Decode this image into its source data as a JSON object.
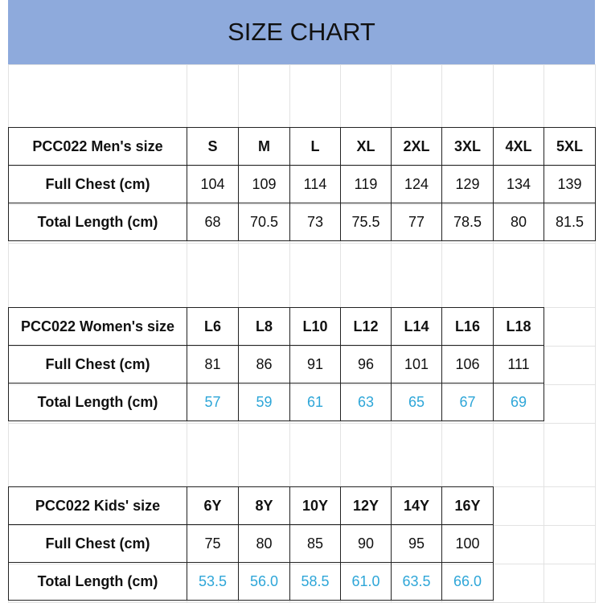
{
  "title": "SIZE CHART",
  "colors": {
    "header_band": "#8eaadc",
    "highlight_text": "#2ea6d8"
  },
  "tables": [
    {
      "header": "PCC022 Men's size",
      "sizes": [
        "S",
        "M",
        "L",
        "XL",
        "2XL",
        "3XL",
        "4XL",
        "5XL"
      ],
      "rows": [
        {
          "label": "Full Chest (cm)",
          "values": [
            "104",
            "109",
            "114",
            "119",
            "124",
            "129",
            "134",
            "139"
          ],
          "highlight": false
        },
        {
          "label": "Total Length (cm)",
          "values": [
            "68",
            "70.5",
            "73",
            "75.5",
            "77",
            "78.5",
            "80",
            "81.5"
          ],
          "highlight": false
        }
      ]
    },
    {
      "header": "PCC022 Women's size",
      "sizes": [
        "L6",
        "L8",
        "L10",
        "L12",
        "L14",
        "L16",
        "L18"
      ],
      "rows": [
        {
          "label": "Full Chest (cm)",
          "values": [
            "81",
            "86",
            "91",
            "96",
            "101",
            "106",
            "111"
          ],
          "highlight": false
        },
        {
          "label": "Total Length (cm)",
          "values": [
            "57",
            "59",
            "61",
            "63",
            "65",
            "67",
            "69"
          ],
          "highlight": true
        }
      ]
    },
    {
      "header": "PCC022 Kids' size",
      "sizes": [
        "6Y",
        "8Y",
        "10Y",
        "12Y",
        "14Y",
        "16Y"
      ],
      "rows": [
        {
          "label": "Full Chest (cm)",
          "values": [
            "75",
            "80",
            "85",
            "90",
            "95",
            "100"
          ],
          "highlight": false
        },
        {
          "label": "Total Length (cm)",
          "values": [
            "53.5",
            "56.0",
            "58.5",
            "61.0",
            "63.5",
            "66.0"
          ],
          "highlight": true
        }
      ]
    }
  ]
}
